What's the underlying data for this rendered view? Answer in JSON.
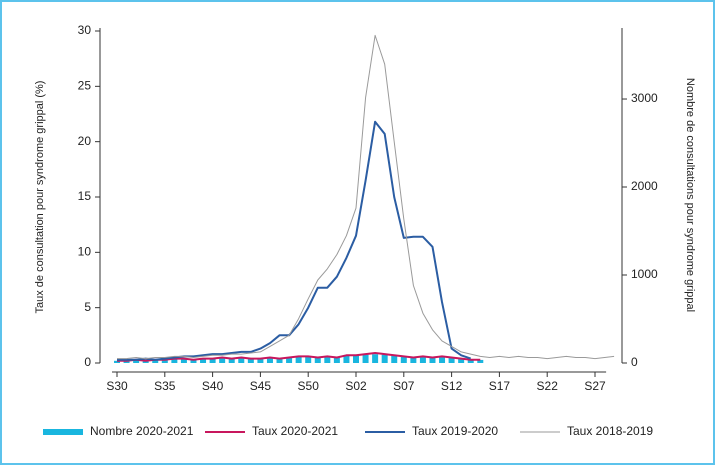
{
  "chart_data": {
    "type": "line",
    "categories": [
      "S30",
      null,
      null,
      null,
      null,
      "S35",
      null,
      null,
      null,
      null,
      "S40",
      null,
      null,
      null,
      null,
      "S45",
      null,
      null,
      null,
      null,
      "S50",
      null,
      null,
      null,
      null,
      "S02",
      null,
      null,
      null,
      null,
      "S07",
      null,
      null,
      null,
      null,
      "S12",
      null,
      null,
      null,
      null,
      "S17",
      null,
      null,
      null,
      null,
      "S22",
      null,
      null,
      null,
      null,
      "S27",
      null,
      null
    ],
    "y_label": "Taux de consultation pour syndrome grippal (%)",
    "y2_label": "Nombre de consultations pour syndrome grippal",
    "ylim": [
      0,
      30
    ],
    "yticks": [
      0,
      5,
      10,
      15,
      20,
      25,
      30
    ],
    "y2lim": [
      0,
      3773
    ],
    "y2ticks": [
      0,
      1000,
      2000,
      3000
    ],
    "legend": "bottom",
    "series": [
      {
        "name": "Nombre 2020-2021",
        "type": "bar",
        "axis": "y2",
        "color": "#19b6df",
        "values": [
          25,
          30,
          35,
          30,
          40,
          40,
          45,
          50,
          40,
          50,
          55,
          60,
          50,
          60,
          55,
          55,
          60,
          55,
          65,
          70,
          75,
          65,
          75,
          70,
          85,
          90,
          95,
          100,
          95,
          85,
          75,
          65,
          70,
          60,
          70,
          60,
          50,
          40,
          35,
          null,
          null,
          null,
          null,
          null,
          null,
          null,
          null,
          null,
          null,
          null,
          null,
          null,
          null
        ]
      },
      {
        "name": "Taux 2020-2021",
        "type": "line",
        "color": "#c8175d",
        "values": [
          0.2,
          0.2,
          0.3,
          0.2,
          0.3,
          0.3,
          0.4,
          0.4,
          0.3,
          0.4,
          0.4,
          0.5,
          0.4,
          0.5,
          0.4,
          0.4,
          0.5,
          0.4,
          0.5,
          0.6,
          0.6,
          0.5,
          0.6,
          0.5,
          0.7,
          0.7,
          0.8,
          0.9,
          0.8,
          0.7,
          0.6,
          0.5,
          0.6,
          0.5,
          0.6,
          0.5,
          0.4,
          0.3,
          0.3,
          null,
          null,
          null,
          null,
          null,
          null,
          null,
          null,
          null,
          null,
          null,
          null,
          null,
          null
        ]
      },
      {
        "name": "Taux 2019-2020",
        "type": "line",
        "color": "#2b5da3",
        "values": [
          0.3,
          0.3,
          0.3,
          0.4,
          0.3,
          0.4,
          0.5,
          0.6,
          0.6,
          0.7,
          0.8,
          0.8,
          0.9,
          1.0,
          1.0,
          1.3,
          1.8,
          2.5,
          2.5,
          3.5,
          5.0,
          6.8,
          6.8,
          7.8,
          9.5,
          11.5,
          16.5,
          21.8,
          20.7,
          15.0,
          11.3,
          11.4,
          11.4,
          10.5,
          5.5,
          1.3,
          0.7,
          0.4,
          null,
          null,
          null,
          null,
          null,
          null,
          null,
          null,
          null,
          null,
          null,
          null,
          null,
          null,
          null
        ]
      },
      {
        "name": "Taux 2018-2019",
        "type": "line",
        "color": "#9a9a9a",
        "values": [
          0.4,
          0.4,
          0.5,
          0.4,
          0.5,
          0.5,
          0.6,
          0.6,
          0.5,
          0.6,
          0.7,
          0.7,
          0.8,
          0.8,
          0.9,
          1.0,
          1.5,
          2.0,
          2.5,
          4.0,
          5.8,
          7.5,
          8.5,
          9.8,
          11.5,
          14.0,
          24.0,
          29.6,
          27.0,
          20.0,
          13.0,
          7.0,
          4.5,
          3.0,
          2.0,
          1.5,
          1.0,
          0.8,
          0.6,
          0.5,
          0.6,
          0.5,
          0.6,
          0.5,
          0.5,
          0.4,
          0.5,
          0.6,
          0.5,
          0.5,
          0.4,
          0.5,
          0.6
        ]
      }
    ]
  }
}
